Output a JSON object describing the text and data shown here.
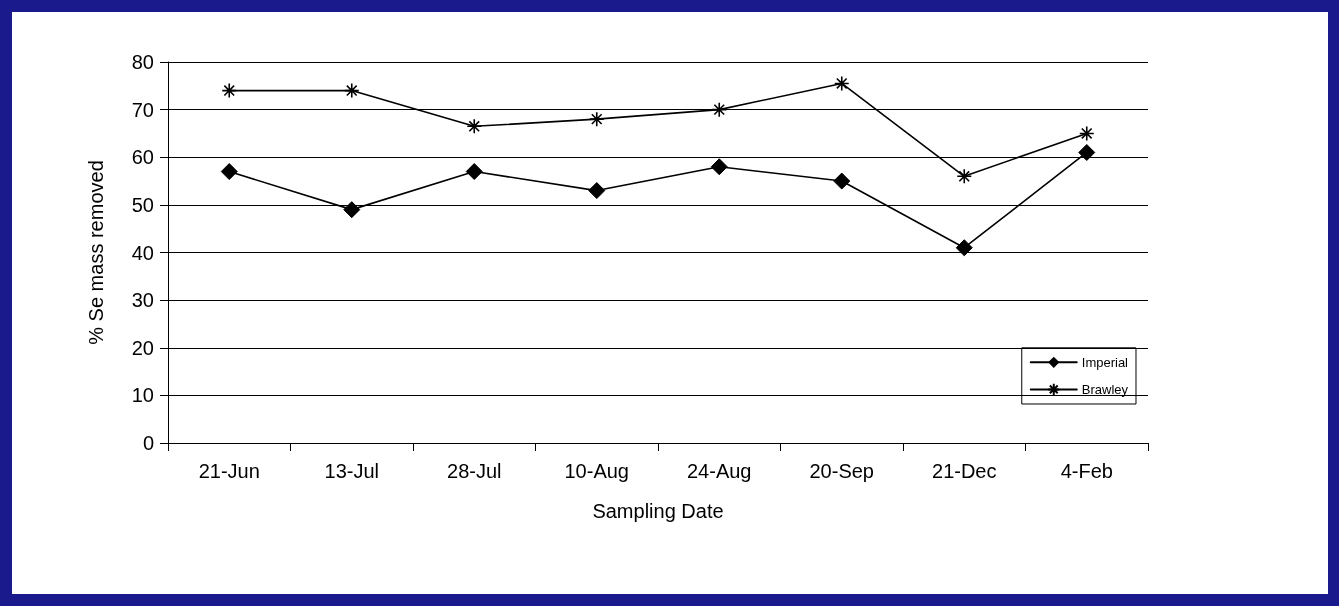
{
  "chart_data": {
    "type": "line",
    "xlabel": "Sampling Date",
    "ylabel": "% Se mass removed",
    "categories": [
      "21-Jun",
      "13-Jul",
      "28-Jul",
      "10-Aug",
      "24-Aug",
      "20-Sep",
      "21-Dec",
      "4-Feb"
    ],
    "series": [
      {
        "name": "Imperial",
        "color": "#000000",
        "marker": "diamond",
        "values": [
          57,
          49,
          57,
          53,
          58,
          55,
          41,
          61
        ]
      },
      {
        "name": "Brawley",
        "color": "#000000",
        "marker": "cross",
        "values": [
          74,
          74,
          66.5,
          68,
          70,
          75.5,
          56,
          65
        ]
      }
    ],
    "ylim": [
      0,
      80
    ],
    "yticks": [
      0,
      10,
      20,
      30,
      40,
      50,
      60,
      70,
      80
    ],
    "grid": "y",
    "legend": "bottom right",
    "line_style": "solid"
  }
}
